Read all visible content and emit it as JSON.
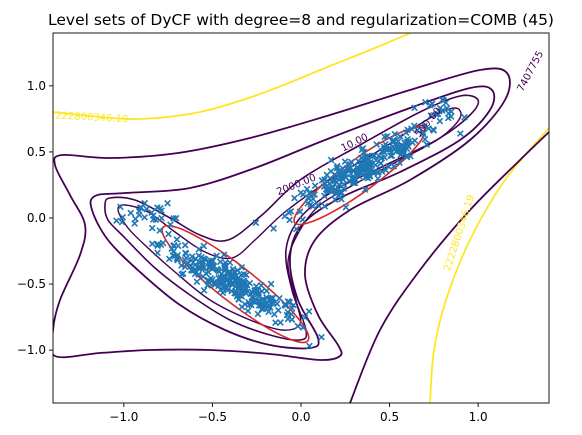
{
  "chart_data": {
    "type": "scatter",
    "title": "Level sets of DyCF with degree=8 and regularization=COMB (45)",
    "xlabel": "",
    "ylabel": "",
    "xlim": [
      -1.4,
      1.4
    ],
    "ylim": [
      -1.4,
      1.4
    ],
    "x_ticks": [
      -1.0,
      -0.5,
      0.0,
      0.5,
      1.0
    ],
    "x_tick_labels": [
      "−1.0",
      "−0.5",
      "0.0",
      "0.5",
      "1.0"
    ],
    "y_ticks": [
      1.0,
      0.5,
      0.0,
      -0.5,
      -1.0
    ],
    "y_tick_labels": [
      "1.0",
      "0.5",
      "0.0",
      "−0.5",
      "−1.0"
    ],
    "grid": false,
    "contour_labels": [
      {
        "text": "2222800346.19",
        "x": -1.2,
        "y": 0.74,
        "angle": 3,
        "color": "#fde725"
      },
      {
        "text": "2222800346.19",
        "x": 0.91,
        "y": -0.12,
        "angle": -72,
        "color": "#fde725"
      },
      {
        "text": "7407755",
        "x": 1.31,
        "y": 1.1,
        "angle": -62,
        "color": "#440154"
      },
      {
        "text": "2000.00",
        "x": -0.02,
        "y": 0.23,
        "angle": -22,
        "color": "#440154"
      },
      {
        "text": "10.00",
        "x": 0.31,
        "y": 0.55,
        "angle": -26,
        "color": "#440154"
      },
      {
        "text": "500.00",
        "x": 0.73,
        "y": 0.71,
        "angle": -50,
        "color": "#440154"
      }
    ],
    "scatter_color": "#1f77b4",
    "contour_colors": {
      "outer": "#440154",
      "high": "#fde725",
      "boundary": "#d62728"
    }
  }
}
